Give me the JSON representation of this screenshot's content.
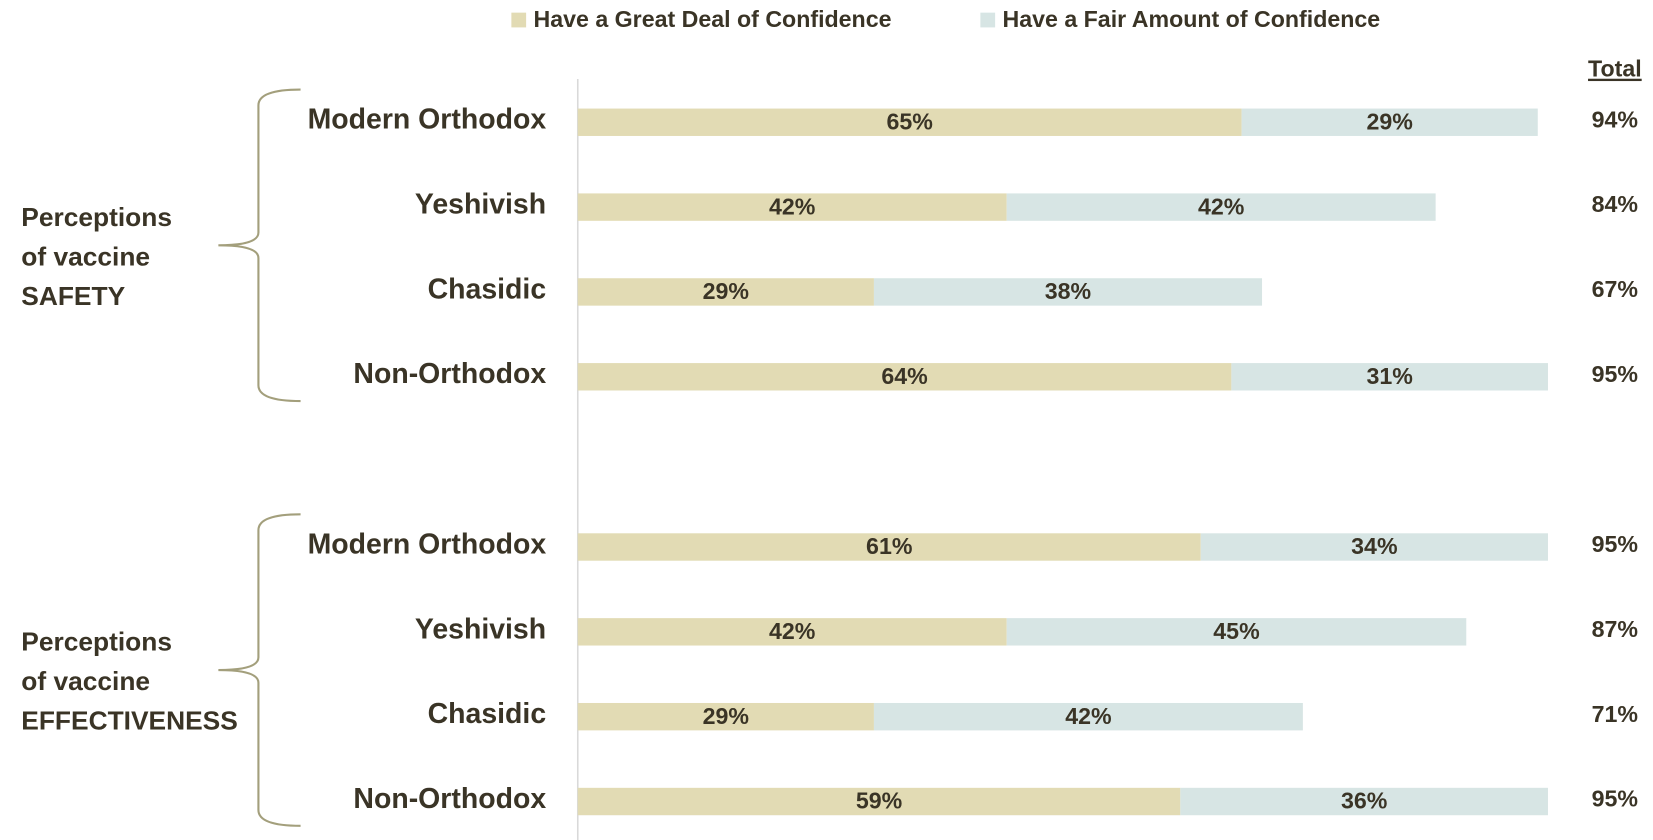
{
  "chart_data": {
    "type": "bar",
    "orientation": "horizontal",
    "stacked": true,
    "xlim": [
      0,
      100
    ],
    "legend": [
      {
        "name": "Have a Great Deal of Confidence",
        "color": "#e2dbb4"
      },
      {
        "name": "Have a Fair Amount of Confidence",
        "color": "#d7e5e4"
      }
    ],
    "total_header": "Total",
    "groups": [
      {
        "label": [
          "Perceptions",
          "of vaccine",
          "SAFETY"
        ],
        "categories": [
          "Modern Orthodox",
          "Yeshivish",
          "Chasidic",
          "Non-Orthodox"
        ],
        "series": [
          {
            "values": [
              65,
              42,
              29,
              64
            ],
            "value_labels": [
              "65%",
              "42%",
              "29%",
              "64%"
            ]
          },
          {
            "values": [
              29,
              42,
              38,
              31
            ],
            "value_labels": [
              "29%",
              "42%",
              "38%",
              "31%"
            ]
          }
        ],
        "totals": [
          94,
          84,
          67,
          95
        ],
        "total_labels": [
          "94%",
          "84%",
          "67%",
          "95%"
        ]
      },
      {
        "label": [
          "Perceptions",
          "of vaccine",
          "EFFECTIVENESS"
        ],
        "categories": [
          "Modern Orthodox",
          "Yeshivish",
          "Chasidic",
          "Non-Orthodox"
        ],
        "series": [
          {
            "values": [
              61,
              42,
              29,
              59
            ],
            "value_labels": [
              "61%",
              "42%",
              "29%",
              "59%"
            ]
          },
          {
            "values": [
              34,
              45,
              42,
              36
            ],
            "value_labels": [
              "34%",
              "45%",
              "42%",
              "36%"
            ]
          }
        ],
        "totals": [
          95,
          87,
          71,
          95
        ],
        "total_labels": [
          "95%",
          "87%",
          "71%",
          "95%"
        ]
      }
    ]
  }
}
